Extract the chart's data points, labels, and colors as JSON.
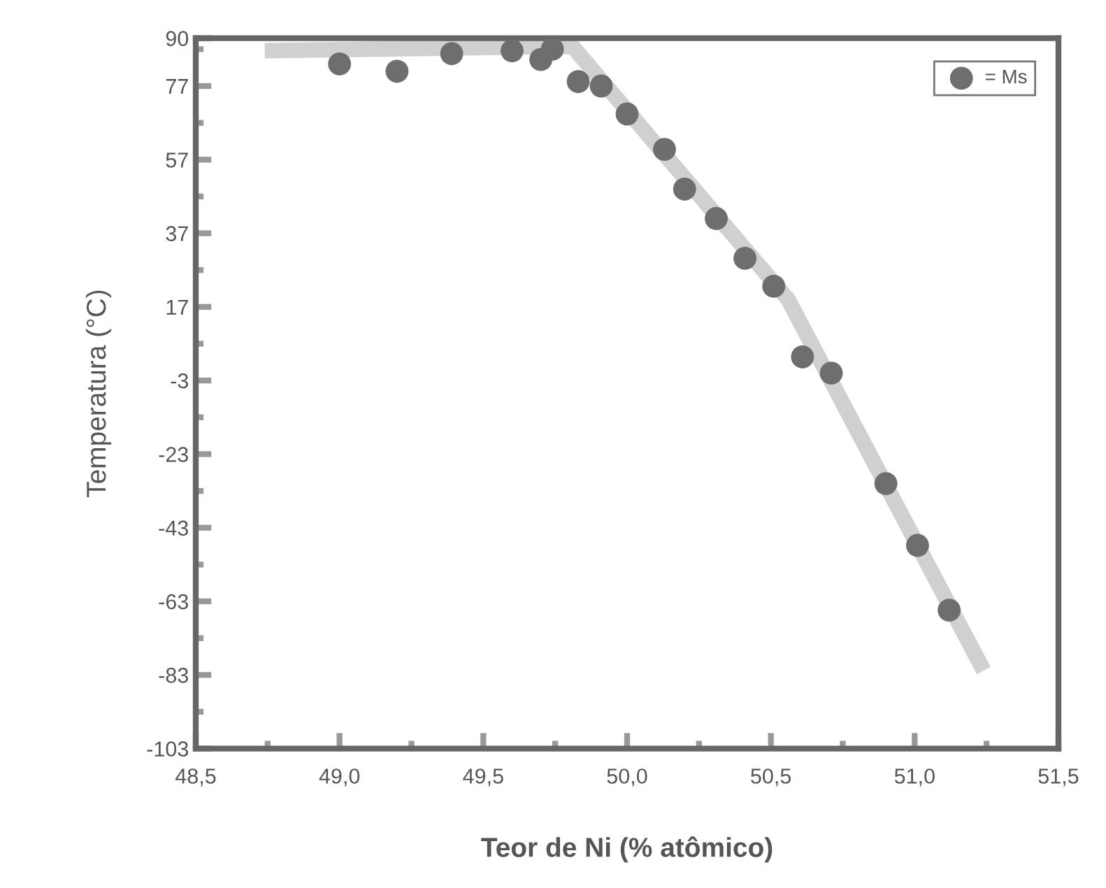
{
  "chart_data": {
    "type": "scatter",
    "xlabel": "Teor de Ni (% atômico)",
    "ylabel": "Temperatura (°C)",
    "xlim": [
      48.5,
      51.5
    ],
    "ylim": [
      -103,
      90
    ],
    "xticks": [
      {
        "value": 48.5,
        "label": "48,5"
      },
      {
        "value": 49.0,
        "label": "49,0"
      },
      {
        "value": 49.5,
        "label": "49,5"
      },
      {
        "value": 50.0,
        "label": "50,0"
      },
      {
        "value": 50.5,
        "label": "50,5"
      },
      {
        "value": 51.0,
        "label": "51,0"
      },
      {
        "value": 51.5,
        "label": "51,5"
      }
    ],
    "yticks": [
      90,
      77,
      57,
      37,
      17,
      -3,
      -23,
      -43,
      -63,
      -83,
      -103
    ],
    "grid": false,
    "legend": "top right",
    "series": [
      {
        "type": "line",
        "color": "#d0d0d0",
        "marker": "none",
        "line_style": "solid",
        "x": [
          48.74,
          49.81,
          50.56,
          51.24
        ],
        "values": [
          86.6,
          87.8,
          19,
          -81.8
        ]
      },
      {
        "name": "= Ms",
        "color": "#6e6e6e",
        "marker": "circle",
        "x": [
          49.0,
          49.2,
          49.39,
          49.6,
          49.7,
          49.74,
          49.83,
          49.91,
          50.0,
          50.13,
          50.2,
          50.31,
          50.41,
          50.51,
          50.61,
          50.71,
          50.9,
          51.01,
          51.12
        ],
        "values": [
          83,
          81,
          85.8,
          86.6,
          84.2,
          87,
          78.2,
          77,
          69.4,
          59.8,
          49,
          41,
          30.2,
          22.6,
          3.4,
          -1,
          -31,
          -47.8,
          -65.4
        ]
      }
    ]
  }
}
